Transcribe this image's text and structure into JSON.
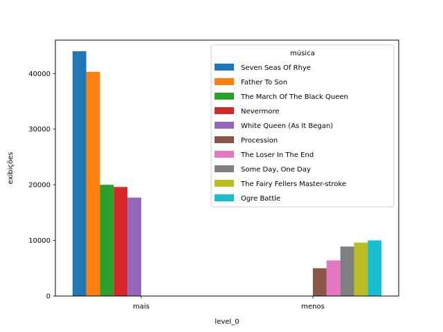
{
  "chart_data": {
    "type": "bar",
    "categories": [
      "mais",
      "menos"
    ],
    "xlabel": "level_0",
    "ylabel": "exibições",
    "ylim": [
      0,
      46000
    ],
    "yticks": [
      0,
      10000,
      20000,
      30000,
      40000
    ],
    "legend": {
      "title": "música",
      "placement": "top-right"
    },
    "series": [
      {
        "name": "Seven Seas Of Rhye",
        "color": "#1f77b4",
        "values": [
          44000,
          null
        ]
      },
      {
        "name": "Father To Son",
        "color": "#ff7f0e",
        "values": [
          40300,
          null
        ]
      },
      {
        "name": "The March Of The Black Queen",
        "color": "#2ca02c",
        "values": [
          20000,
          null
        ]
      },
      {
        "name": "Nevermore",
        "color": "#d62728",
        "values": [
          19600,
          null
        ]
      },
      {
        "name": "White Queen (As It Began)",
        "color": "#9467bd",
        "values": [
          17700,
          null
        ]
      },
      {
        "name": "Procession",
        "color": "#8c564b",
        "values": [
          null,
          5000
        ]
      },
      {
        "name": "The Loser In The End",
        "color": "#e377c2",
        "values": [
          null,
          6400
        ]
      },
      {
        "name": "Some Day, One Day",
        "color": "#7f7f7f",
        "values": [
          null,
          8900
        ]
      },
      {
        "name": "The Fairy Fellers Master-stroke",
        "color": "#bcbd22",
        "values": [
          null,
          9600
        ]
      },
      {
        "name": "Ogre Battle",
        "color": "#17becf",
        "values": [
          null,
          10000
        ]
      }
    ]
  }
}
